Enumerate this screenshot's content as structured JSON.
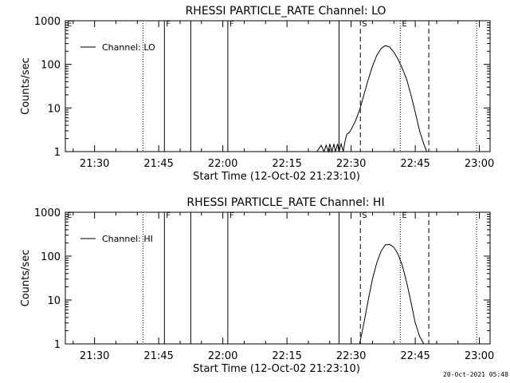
{
  "chart_data": [
    {
      "type": "line",
      "title": "RHESSI PARTICLE_RATE Channel: LO",
      "xlabel": "Start Time (12-Oct-02 21:23:10)",
      "ylabel": "Counts/sec",
      "y_scale": "log",
      "ylim": [
        1,
        1000
      ],
      "xlim": [
        "21:23:10",
        "23:02:30"
      ],
      "x_ticks": [
        "21:30",
        "21:45",
        "22:00",
        "22:15",
        "22:30",
        "22:45",
        "23:00"
      ],
      "y_ticks": [
        "1",
        "10",
        "100",
        "1000"
      ],
      "legend": {
        "position": "top-left",
        "entries": [
          "Channel: LO"
        ]
      },
      "series": [
        {
          "name": "Channel: LO",
          "x": [
            "22:22:00",
            "22:23:00",
            "22:23:40",
            "22:24:10",
            "22:24:40",
            "22:25:00",
            "22:25:30",
            "22:26:00",
            "22:26:20",
            "22:26:50",
            "22:27:10",
            "22:27:40",
            "22:28:10",
            "22:28:30",
            "22:29:00",
            "22:29:30",
            "22:30:00",
            "22:31:00",
            "22:32:00",
            "22:33:00",
            "22:34:00",
            "22:35:00",
            "22:36:00",
            "22:37:00",
            "22:38:00",
            "22:39:00",
            "22:40:00",
            "22:41:00",
            "22:42:00",
            "22:43:00",
            "22:44:00",
            "22:45:00",
            "22:46:00",
            "22:47:00",
            "22:47:40"
          ],
          "y": [
            1,
            1.4,
            1,
            1.4,
            1,
            1.5,
            1,
            1.5,
            1,
            1.5,
            1,
            1.5,
            1,
            1.6,
            2.5,
            2.7,
            3.2,
            5,
            9,
            20,
            45,
            90,
            160,
            230,
            270,
            250,
            190,
            130,
            80,
            45,
            20,
            8,
            3,
            1.5,
            1
          ]
        }
      ],
      "markers": {
        "labels": [
          {
            "label": "E",
            "time": "21:23:10"
          },
          {
            "label": "F",
            "time": "21:46:20"
          },
          {
            "label": "F",
            "time": "22:01:10"
          },
          {
            "label": "S",
            "time": "22:32:10"
          },
          {
            "label": "E",
            "time": "22:41:30"
          }
        ],
        "solid_lines": [
          "21:46:20",
          "21:52:30",
          "22:01:10",
          "22:27:10"
        ],
        "dotted_lines": [
          "21:41:20",
          "22:41:30",
          "22:59:20"
        ],
        "dashed_lines": [
          "22:32:10",
          "22:48:10"
        ]
      }
    },
    {
      "type": "line",
      "title": "RHESSI PARTICLE_RATE Channel: HI",
      "xlabel": "Start Time (12-Oct-02 21:23:10)",
      "ylabel": "Counts/sec",
      "y_scale": "log",
      "ylim": [
        1,
        1000
      ],
      "xlim": [
        "21:23:10",
        "23:02:30"
      ],
      "x_ticks": [
        "21:30",
        "21:45",
        "22:00",
        "22:15",
        "22:30",
        "22:45",
        "23:00"
      ],
      "y_ticks": [
        "1",
        "10",
        "100",
        "1000"
      ],
      "legend": {
        "position": "top-left",
        "entries": [
          "Channel: HI"
        ]
      },
      "series": [
        {
          "name": "Channel: HI",
          "x": [
            "22:32:00",
            "22:33:00",
            "22:34:00",
            "22:35:00",
            "22:36:00",
            "22:37:00",
            "22:38:00",
            "22:39:00",
            "22:40:00",
            "22:41:00",
            "22:42:00",
            "22:43:00",
            "22:44:00",
            "22:45:00",
            "22:46:00",
            "22:47:00"
          ],
          "y": [
            1,
            3,
            10,
            30,
            70,
            130,
            180,
            185,
            160,
            110,
            60,
            25,
            9,
            3,
            1.5,
            1
          ]
        }
      ],
      "markers": {
        "labels": [
          {
            "label": "E",
            "time": "21:23:10"
          },
          {
            "label": "F",
            "time": "21:46:20"
          },
          {
            "label": "F",
            "time": "22:01:10"
          },
          {
            "label": "S",
            "time": "22:32:10"
          },
          {
            "label": "E",
            "time": "22:41:30"
          }
        ],
        "solid_lines": [
          "21:46:20",
          "21:52:30",
          "22:01:10",
          "22:27:10"
        ],
        "dotted_lines": [
          "21:41:20",
          "22:41:30",
          "22:59:20"
        ],
        "dashed_lines": [
          "22:32:10",
          "22:48:10"
        ]
      }
    }
  ],
  "footer": {
    "timestamp": "20-Oct-2021 05:48"
  }
}
